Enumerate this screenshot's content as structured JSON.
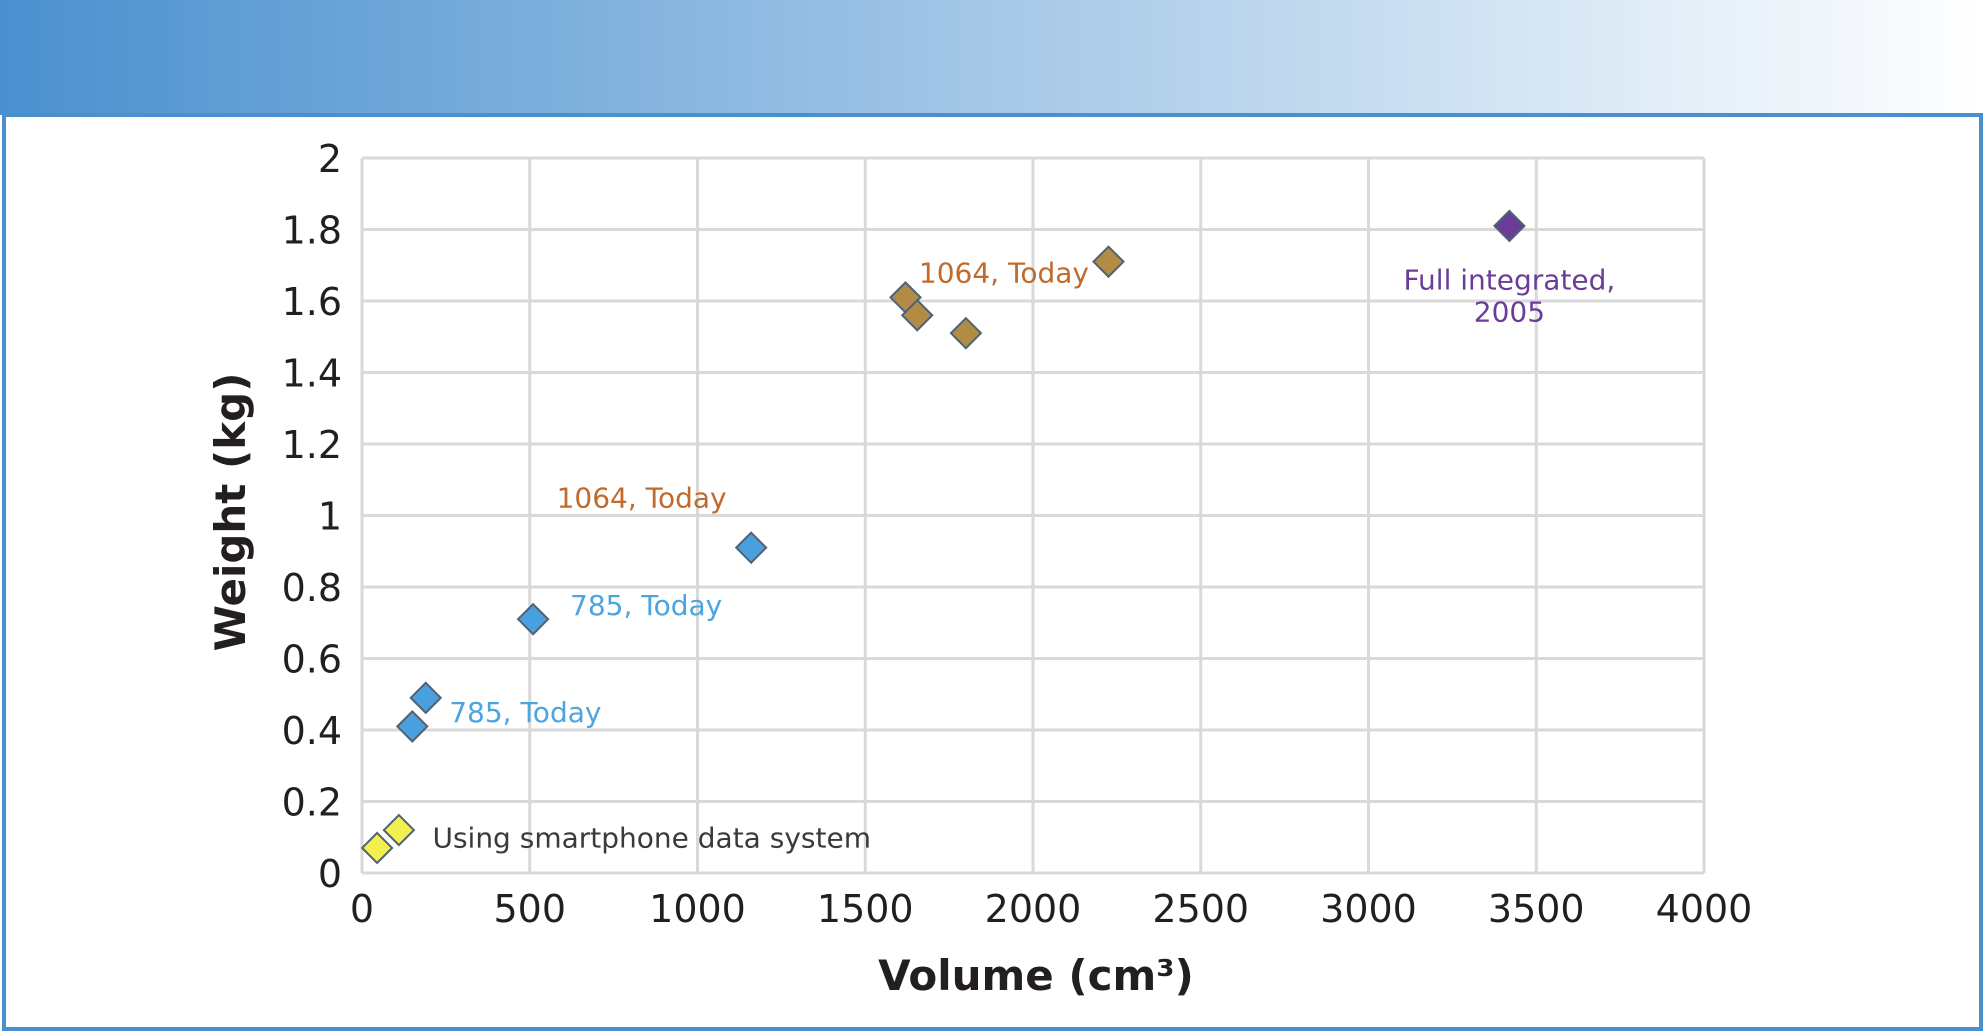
{
  "chart_data": {
    "type": "scatter",
    "title": "",
    "xlabel": "Volume (cm³)",
    "ylabel": "Weight (kg)",
    "xlim": [
      0,
      4000
    ],
    "ylim": [
      0,
      2
    ],
    "xticks": [
      "0",
      "500",
      "1000",
      "1500",
      "2000",
      "2500",
      "3000",
      "3500",
      "4000"
    ],
    "yticks": [
      "0",
      "0.2",
      "0.4",
      "0.6",
      "0.8",
      "1",
      "1.2",
      "1.4",
      "1.6",
      "1.8",
      "2"
    ],
    "grid": true,
    "legend": "none",
    "series": [
      {
        "color": "#F2EF4E",
        "points": [
          {
            "x": 45,
            "y": 0.07
          },
          {
            "x": 110,
            "y": 0.12
          }
        ]
      },
      {
        "color": "#4A9FE0",
        "points": [
          {
            "x": 150,
            "y": 0.41
          },
          {
            "x": 190,
            "y": 0.49
          },
          {
            "x": 510,
            "y": 0.71
          },
          {
            "x": 1160,
            "y": 0.91
          }
        ]
      },
      {
        "color": "#B28C45",
        "points": [
          {
            "x": 1620,
            "y": 1.61
          },
          {
            "x": 1655,
            "y": 1.56
          },
          {
            "x": 1800,
            "y": 1.51
          },
          {
            "x": 2225,
            "y": 1.71
          }
        ]
      },
      {
        "color": "#6A3E98",
        "points": [
          {
            "x": 3420,
            "y": 1.81
          }
        ]
      }
    ],
    "annotations": [
      {
        "text": "Using smartphone data system",
        "x": 210,
        "y": 0.1,
        "color": "#3A3A3A"
      },
      {
        "text": "785, Today",
        "x": 260,
        "y": 0.45,
        "color": "#4BA5DE"
      },
      {
        "text": "785, Today",
        "x": 620,
        "y": 0.75,
        "color": "#4BA5DE"
      },
      {
        "text": "1064, Today",
        "x": 580,
        "y": 1.05,
        "color": "#C06A2B"
      },
      {
        "text": "1064, Today",
        "x": 1660,
        "y": 1.68,
        "color": "#C06A2B"
      },
      {
        "text": "Full integrated,",
        "x": 3420,
        "y": 1.66,
        "color": "#6A3E98"
      },
      {
        "text": "2005",
        "x": 3420,
        "y": 1.57,
        "color": "#6A3E98"
      }
    ]
  },
  "colors": {
    "header_gradient_start": "#4A90CF",
    "header_gradient_end": "#FFFFFF",
    "frame_border": "#4A90CF",
    "grid": "#D9D9D9",
    "axis_text": "#231F20"
  }
}
